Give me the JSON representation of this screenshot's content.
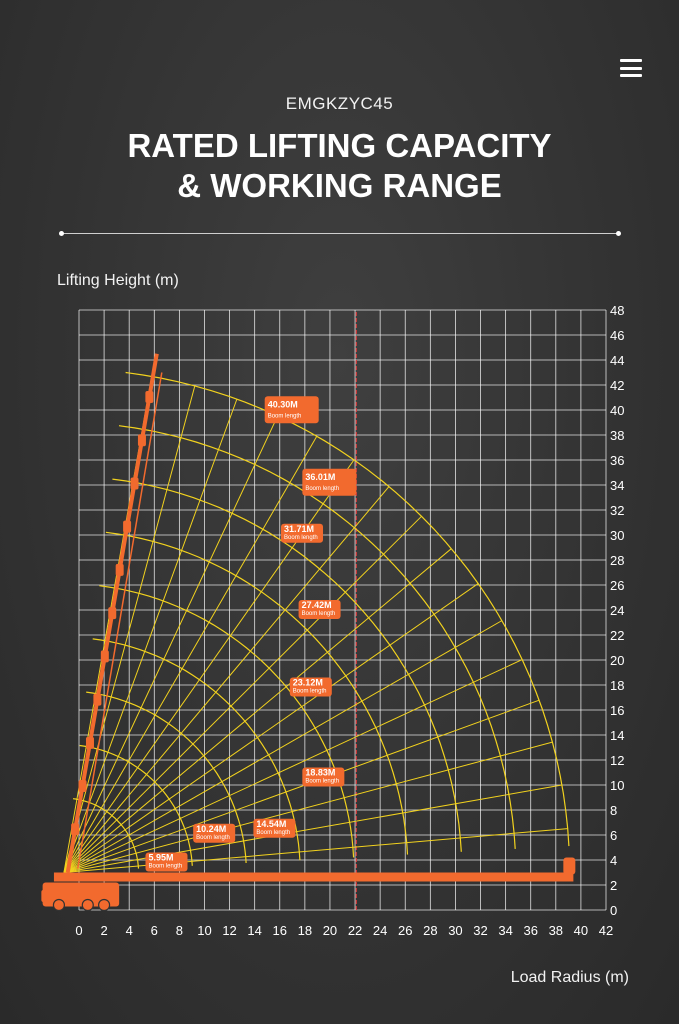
{
  "header": {
    "menu_icon": "hamburger-menu-icon",
    "subtitle": "EMGKZYC45",
    "title_line1": "RATED LIFTING CAPACITY",
    "title_line2": "& WORKING RANGE"
  },
  "colors": {
    "background": "#333333",
    "grid": "#ffffff",
    "curves": "#f2d21e",
    "crane": "#f26a2e",
    "label_bg": "#f26a2e",
    "reference_line": "#d33a3a"
  },
  "chart_data": {
    "type": "line",
    "xlabel": "Load Radius (m)",
    "ylabel": "Lifting Height (m)",
    "xlim": [
      0,
      42
    ],
    "ylim": [
      0,
      48
    ],
    "x_ticks": [
      0,
      2,
      4,
      6,
      8,
      10,
      12,
      14,
      16,
      18,
      20,
      22,
      24,
      26,
      28,
      30,
      32,
      34,
      36,
      38,
      40,
      42
    ],
    "y_ticks": [
      0,
      2,
      4,
      6,
      8,
      10,
      12,
      14,
      16,
      18,
      20,
      22,
      24,
      26,
      28,
      30,
      32,
      34,
      36,
      38,
      40,
      42,
      44,
      46,
      48
    ],
    "grid": true,
    "reference_line_x": 22.1,
    "boom_pivot": [
      -1.2,
      3.0
    ],
    "boom_angle_lines_deg": [
      80,
      75,
      70,
      65,
      60,
      55,
      50,
      45,
      40,
      35,
      30,
      25,
      20,
      15,
      10,
      5
    ],
    "series": [
      {
        "label": "5.95M",
        "sublabel": "Boom length",
        "boom_length_m": 5.95,
        "label_at": [
          5.3,
          4.6
        ]
      },
      {
        "label": "10.24M",
        "sublabel": "Boom length",
        "boom_length_m": 10.24,
        "label_at": [
          9.1,
          6.9
        ]
      },
      {
        "label": "14.54M",
        "sublabel": "Boom length",
        "boom_length_m": 14.54,
        "label_at": [
          13.9,
          7.3
        ]
      },
      {
        "label": "18.83M",
        "sublabel": "Boom length",
        "boom_length_m": 18.83,
        "label_at": [
          17.8,
          11.4
        ]
      },
      {
        "label": "23.12M",
        "sublabel": "Boom length",
        "boom_length_m": 23.12,
        "label_at": [
          16.8,
          18.6
        ]
      },
      {
        "label": "27.42M",
        "sublabel": "Boom length",
        "boom_length_m": 27.42,
        "label_at": [
          17.5,
          24.8
        ]
      },
      {
        "label": "31.71M",
        "sublabel": "Boom length",
        "boom_length_m": 31.71,
        "label_at": [
          16.1,
          30.9
        ]
      },
      {
        "label": "36.01M",
        "sublabel": "Boom length",
        "boom_length_m": 36.01,
        "label_at": [
          17.8,
          35.3
        ]
      },
      {
        "label": "40.30M",
        "sublabel": "Boom length",
        "boom_length_m": 40.3,
        "label_at": [
          14.8,
          41.1
        ]
      }
    ]
  }
}
